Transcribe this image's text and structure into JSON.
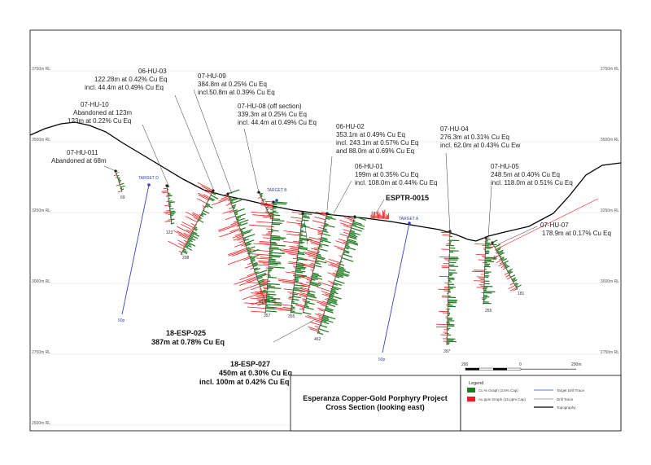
{
  "elevation_labels": [
    "3750m RL",
    "3500m RL",
    "3250m RL",
    "3000m RL",
    "2750m RL",
    "2500m RL"
  ],
  "title_block": {
    "line1": "Esperanza Copper-Gold Porphyry Project",
    "line2": "Cross Section (looking east)"
  },
  "legend": {
    "title": "Legend",
    "cu_label": "Cu % Graph (3.5% Cap)",
    "au_label": "Au ppm Graph (15 ppm Cap)",
    "target_label": "Target Drill Trace",
    "drill_label": "Drill Trace",
    "topo_label": "Topography",
    "colors": {
      "cu": "#1e7a1e",
      "au": "#ee1c1c",
      "target": "#3344cc",
      "drill": "#888888",
      "topo": "#000000"
    }
  },
  "scale_bar": {
    "left": "200",
    "mid": "0",
    "right": "200m"
  },
  "targets": {
    "d": "TARGET D",
    "b": "TARGET B",
    "a": "TARGET A",
    "d_depth": "50p",
    "a_depth": "50p"
  },
  "hole_depths": [
    "69",
    "123",
    "208",
    "417",
    "357",
    "355",
    "462",
    "397",
    "255",
    "11",
    "181"
  ],
  "callouts": {
    "hu011": {
      "name": "07-HU-011",
      "l1": "Abandoned at 68m"
    },
    "hu10": {
      "name": "07-HU-10",
      "l1": "Abandoned at 123m",
      "l2": "123m at 0.22% Cu Eq"
    },
    "hu03": {
      "name": "06-HU-03",
      "l1": "122.28m at 0.42% Cu Eq",
      "l2": "incl. 44.4m at 0.49% Cu Eq"
    },
    "hu09": {
      "name": "07-HU-09",
      "l1": "384.8m at 0.25% Cu Eq",
      "l2": "incl.50.8m at 0.39% Cu Eq"
    },
    "hu08": {
      "name": "07-HU-08 (off section)",
      "l1": "339.3m at 0.25% Cu Eq",
      "l2": "incl. 44.4m at 0.49% Cu Eq"
    },
    "hu02": {
      "name": "06-HU-02",
      "l1": "353.1m at 0.49% Cu Eq",
      "l2": "incl. 243.1m at 0.57% Cu Eq",
      "l3": "and 88.0m at 0.69% Cu Eq"
    },
    "hu01": {
      "name": "06-HU-01",
      "l1": "199m at 0.35% Cu Eq",
      "l2": "incl. 108.0m at 0.44% Cu Eq"
    },
    "esptr": {
      "name": "ESPTR-0015"
    },
    "hu04": {
      "name": "07-HU-04",
      "l1": "276.3m at 0.31% Cu Eq",
      "l2": "incl. 62.0m at 0.43% Cu Ew"
    },
    "hu05": {
      "name": "07-HU-05",
      "l1": "248.5m at 0.40% Cu Eq",
      "l2": "incl. 118.0m at 0.51% Cu Eq"
    },
    "hu07": {
      "name": "07-HU-07",
      "l1": "178.9m at 0.17% Cu Eq"
    },
    "esp025": {
      "name": "18-ESP-025",
      "l1": "387m at 0.78% Cu Eq"
    },
    "esp027": {
      "name": "18-ESP-027",
      "l1": "450m at 0.30% Cu Eq",
      "l2": "incl. 100m at 0.42% Cu Eq"
    }
  }
}
